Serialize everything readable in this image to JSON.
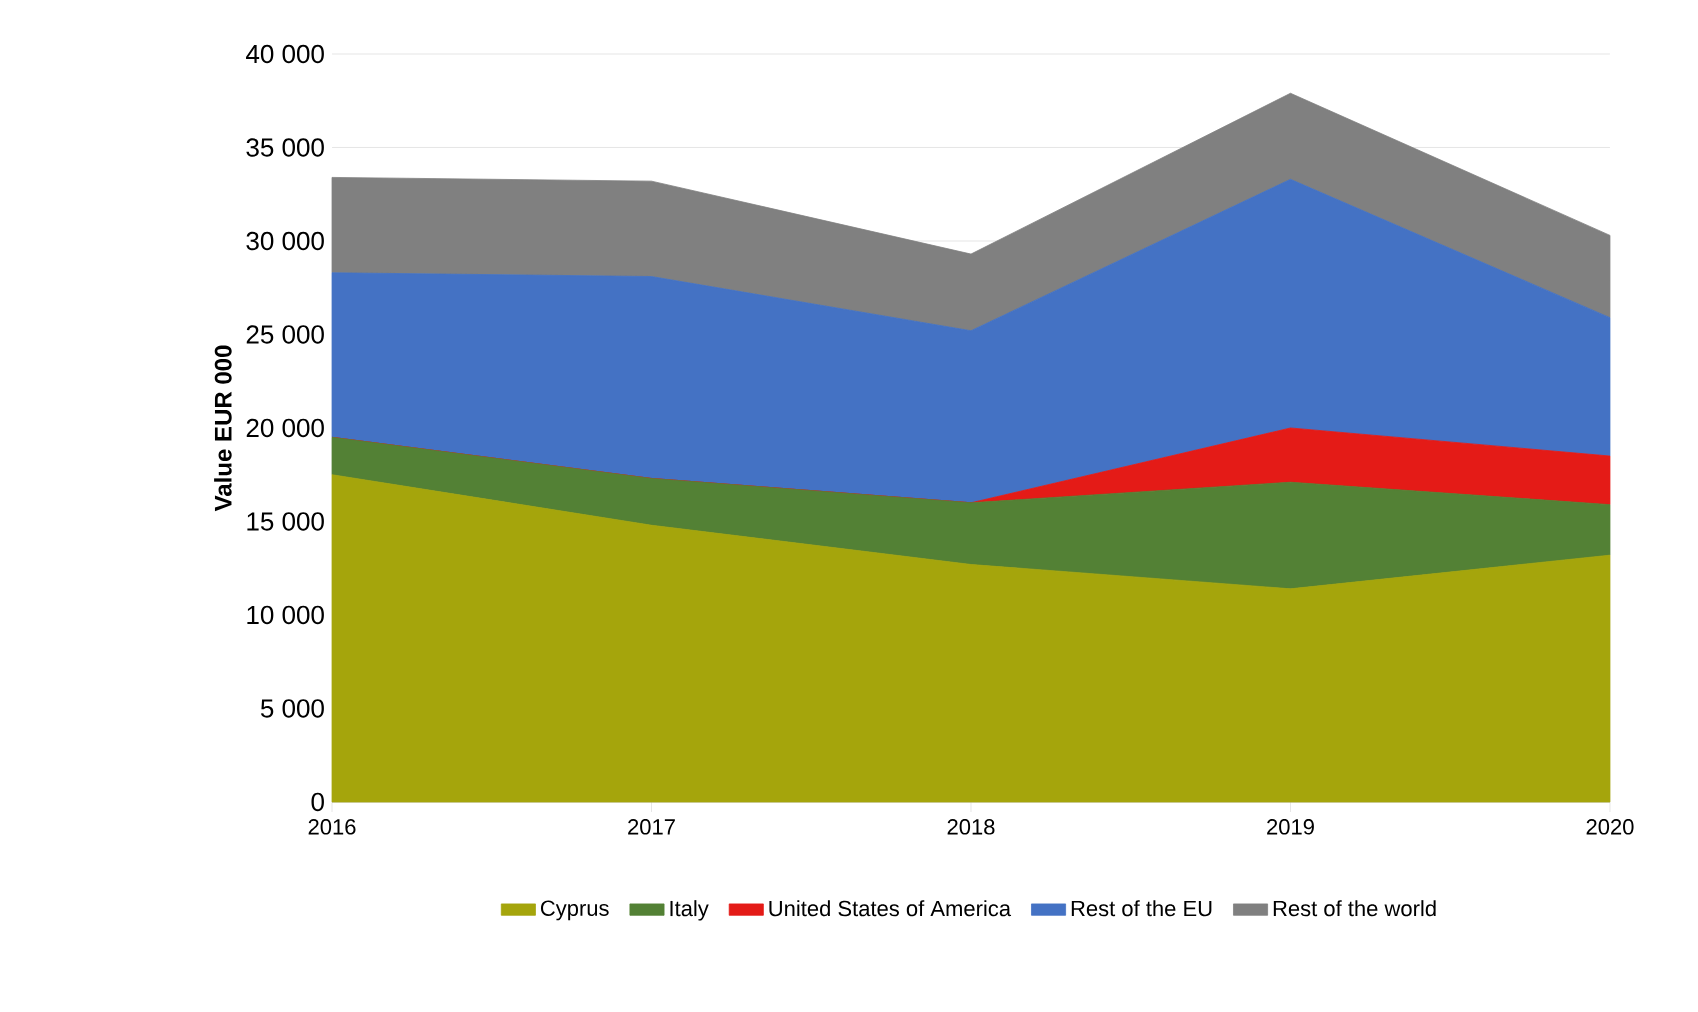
{
  "chart_data": {
    "type": "area",
    "stacked": true,
    "ylabel": "Value EUR 000",
    "categories": [
      "2016",
      "2017",
      "2018",
      "2019",
      "2020"
    ],
    "series": [
      {
        "name": "Cyprus",
        "color": "#a5a50c",
        "values": [
          17500,
          14800,
          12700,
          11400,
          13200
        ]
      },
      {
        "name": "Italy",
        "color": "#538135",
        "values": [
          2000,
          2500,
          3300,
          5700,
          2700
        ]
      },
      {
        "name": "United States of America",
        "color": "#e41b17",
        "values": [
          0,
          0,
          0,
          2900,
          2600
        ]
      },
      {
        "name": "Rest of the EU",
        "color": "#4472c4",
        "values": [
          8800,
          10800,
          9200,
          13300,
          7400
        ]
      },
      {
        "name": "Rest of the world",
        "color": "#808080",
        "values": [
          5100,
          5100,
          4100,
          4600,
          4400
        ]
      }
    ],
    "ylim": [
      0,
      40000
    ],
    "yticks": [
      0,
      {
        "value": 5000,
        "label": "5 000"
      },
      {
        "value": 10000,
        "label": "10 000"
      },
      {
        "value": 15000,
        "label": "15 000"
      },
      {
        "value": 20000,
        "label": "20 000"
      },
      {
        "value": 25000,
        "label": "25 000"
      },
      {
        "value": 30000,
        "label": "30 000"
      },
      {
        "value": 35000,
        "label": "35 000"
      },
      {
        "value": 40000,
        "label": "40 000"
      }
    ],
    "grid": "y",
    "legend": "bottom"
  }
}
